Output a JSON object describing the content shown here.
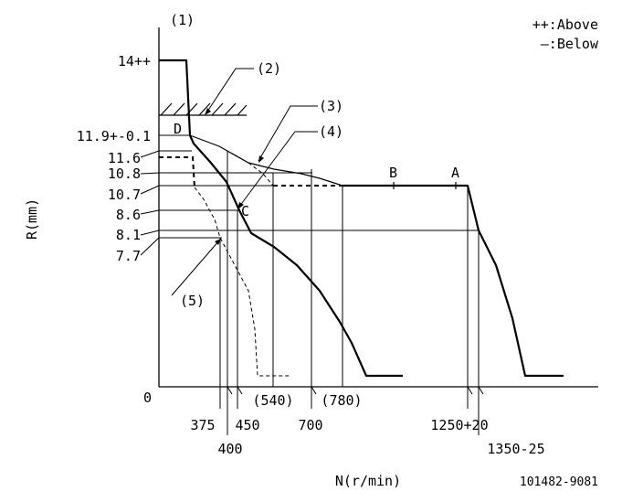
{
  "legend": {
    "above": "++:Above",
    "below": "—:Below"
  },
  "axes": {
    "y_title": "R(mm)",
    "x_title": "N(r/min)",
    "origin": "0"
  },
  "callouts": {
    "c1": "(1)",
    "c2": "(2)",
    "c3": "(3)",
    "c4": "(4)",
    "c5": "(5)"
  },
  "points": {
    "A": "A",
    "B": "B",
    "C": "C",
    "D": "D"
  },
  "y_labels": {
    "r14": "14++",
    "r11_9": "11.9+-0.1",
    "r11_6": "11.6",
    "r10_8": "10.8",
    "r10_7": "10.7",
    "r8_6": "8.6",
    "r8_1": "8.1",
    "r7_7": "7.7"
  },
  "x_labels": {
    "n375": "375",
    "n400": "400",
    "n450": "450",
    "n540": "(540)",
    "n700": "700",
    "n780": "(780)",
    "n1250": "1250+20",
    "n1350": "1350-25"
  },
  "doc_id": "101482-9081"
}
